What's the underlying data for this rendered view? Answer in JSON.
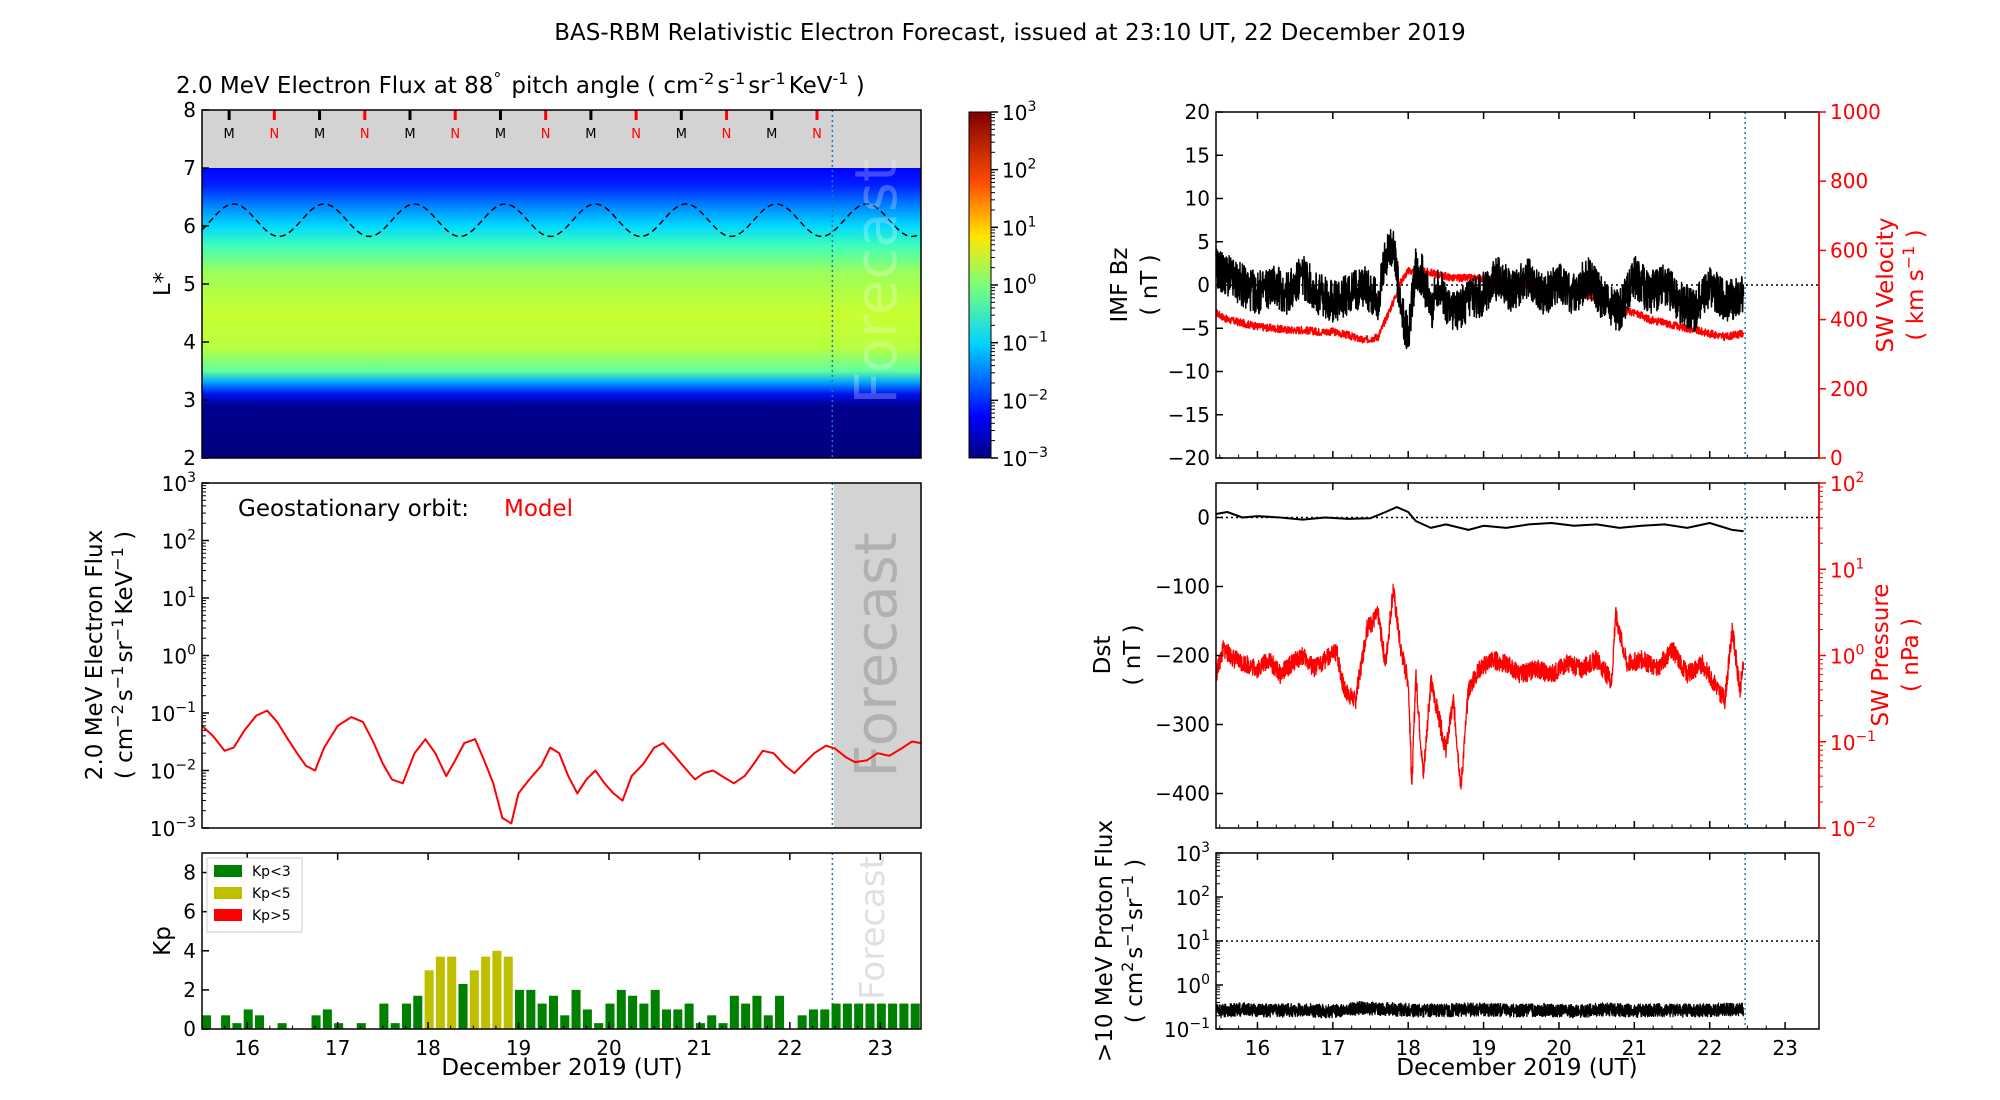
{
  "figure": {
    "title": "BAS-RBM Relativistic Electron Forecast, issued at 23:10 UT, 22 December 2019"
  },
  "colors": {
    "model_red": "#ff0000",
    "black": "#000000",
    "forecast_grey": "#d3d3d3",
    "forecast_line": "#1f77b4",
    "kp_low": "#008000",
    "kp_mid": "#bfbf00",
    "kp_high": "#ff0000"
  },
  "chart_data": [
    {
      "id": "lstar_flux",
      "type": "heatmap",
      "title": "2.0 MeV Electron Flux at 88",
      "title_deg": "°",
      "title_units_open": "pitch angle ( cm",
      "title_units_close": " )",
      "unit_parts": [
        "cm",
        "-2",
        "s",
        "-1",
        "sr",
        "-1",
        "KeV",
        "-1"
      ],
      "ylabel": "L*",
      "ylim": [
        2,
        8
      ],
      "yticks": [
        "2",
        "3",
        "4",
        "5",
        "6",
        "7",
        "8"
      ],
      "xlim": [
        15.5,
        23.45
      ],
      "forecast_start": 22.47,
      "forecast_label": "Forecast",
      "colorbar": {
        "scale": "log",
        "range": [
          0.001,
          1000
        ],
        "ticks": [
          {
            "base": "10",
            "exp": "-3"
          },
          {
            "base": "10",
            "exp": "-2"
          },
          {
            "base": "10",
            "exp": "-1"
          },
          {
            "base": "10",
            "exp": "0"
          },
          {
            "base": "10",
            "exp": "1"
          },
          {
            "base": "10",
            "exp": "2"
          },
          {
            "base": "10",
            "exp": "3"
          }
        ]
      },
      "mn_markers": [
        {
          "x": 15.8,
          "label": "M"
        },
        {
          "x": 16.3,
          "label": "N"
        },
        {
          "x": 16.8,
          "label": "M"
        },
        {
          "x": 17.3,
          "label": "N"
        },
        {
          "x": 17.8,
          "label": "M"
        },
        {
          "x": 18.3,
          "label": "N"
        },
        {
          "x": 18.8,
          "label": "M"
        },
        {
          "x": 19.3,
          "label": "N"
        },
        {
          "x": 19.8,
          "label": "M"
        },
        {
          "x": 20.3,
          "label": "N"
        },
        {
          "x": 20.8,
          "label": "M"
        },
        {
          "x": 21.3,
          "label": "N"
        },
        {
          "x": 21.8,
          "label": "M"
        },
        {
          "x": 22.3,
          "label": "N"
        }
      ],
      "geo_lstar_line": {
        "mean": 6.1,
        "amplitude": 0.28,
        "period_days": 1.0
      }
    },
    {
      "id": "geo_flux",
      "type": "line",
      "ylabel_lines": [
        "2.0 MeV Electron Flux",
        "( cm-2 s-1 sr-1 KeV-1 )"
      ],
      "annotation": "Geostationary orbit:",
      "annotation_model": "Model",
      "forecast_label": "Forecast",
      "yscale": "log",
      "ylim": [
        0.001,
        1000
      ],
      "xlim": [
        15.5,
        23.45
      ],
      "forecast_start": 22.47,
      "yticks": [
        {
          "base": "10",
          "exp": "-3"
        },
        {
          "base": "10",
          "exp": "-2"
        },
        {
          "base": "10",
          "exp": "-1"
        },
        {
          "base": "10",
          "exp": "0"
        },
        {
          "base": "10",
          "exp": "1"
        },
        {
          "base": "10",
          "exp": "2"
        },
        {
          "base": "10",
          "exp": "3"
        }
      ],
      "series": [
        {
          "color": "#ff0000",
          "x": [
            15.5,
            15.62,
            15.75,
            15.85,
            15.97,
            16.1,
            16.22,
            16.33,
            16.45,
            16.55,
            16.65,
            16.75,
            16.85,
            17.0,
            17.15,
            17.28,
            17.4,
            17.5,
            17.6,
            17.72,
            17.85,
            17.97,
            18.08,
            18.2,
            18.3,
            18.4,
            18.52,
            18.62,
            18.72,
            18.82,
            18.92,
            19.0,
            19.12,
            19.25,
            19.35,
            19.45,
            19.55,
            19.65,
            19.75,
            19.85,
            19.95,
            20.05,
            20.15,
            20.25,
            20.38,
            20.5,
            20.6,
            20.7,
            20.82,
            20.95,
            21.05,
            21.15,
            21.25,
            21.38,
            21.5,
            21.6,
            21.7,
            21.82,
            21.95,
            22.05,
            22.15,
            22.27,
            22.4,
            22.5,
            22.62,
            22.72,
            22.85,
            22.97,
            23.1,
            23.25,
            23.35,
            23.45
          ],
          "y": [
            0.06,
            0.04,
            0.022,
            0.025,
            0.05,
            0.09,
            0.11,
            0.07,
            0.035,
            0.02,
            0.012,
            0.01,
            0.025,
            0.06,
            0.085,
            0.07,
            0.03,
            0.013,
            0.007,
            0.006,
            0.02,
            0.035,
            0.02,
            0.008,
            0.015,
            0.03,
            0.035,
            0.015,
            0.006,
            0.0015,
            0.0012,
            0.004,
            0.007,
            0.012,
            0.025,
            0.02,
            0.008,
            0.004,
            0.007,
            0.01,
            0.006,
            0.004,
            0.003,
            0.008,
            0.013,
            0.025,
            0.03,
            0.02,
            0.012,
            0.007,
            0.009,
            0.01,
            0.008,
            0.006,
            0.008,
            0.013,
            0.022,
            0.02,
            0.012,
            0.009,
            0.013,
            0.02,
            0.027,
            0.024,
            0.017,
            0.014,
            0.015,
            0.02,
            0.018,
            0.025,
            0.032,
            0.03
          ]
        }
      ]
    },
    {
      "id": "kp",
      "type": "bar",
      "ylabel": "Kp",
      "ylim": [
        0,
        9
      ],
      "yticks": [
        "0",
        "2",
        "4",
        "6",
        "8"
      ],
      "xlim": [
        15.5,
        23.45
      ],
      "forecast_start": 22.47,
      "forecast_label": "Forecast",
      "xticks": [
        "16",
        "17",
        "18",
        "19",
        "20",
        "21",
        "22",
        "23"
      ],
      "xlabel": "December 2019 (UT)",
      "legend": [
        {
          "label": "Kp<3",
          "color": "#008000"
        },
        {
          "label": "Kp<5",
          "color": "#bfbf00"
        },
        {
          "label": "Kp>5",
          "color": "#ff0000"
        }
      ],
      "bar_width": 0.1,
      "bar_x": [
        15.5,
        15.625,
        15.75,
        15.875,
        16.0,
        16.125,
        16.25,
        16.375,
        16.5,
        16.625,
        16.75,
        16.875,
        17.0,
        17.125,
        17.25,
        17.375,
        17.5,
        17.625,
        17.75,
        17.875,
        18.0,
        18.125,
        18.25,
        18.375,
        18.5,
        18.625,
        18.75,
        18.875,
        19.0,
        19.125,
        19.25,
        19.375,
        19.5,
        19.625,
        19.75,
        19.875,
        20.0,
        20.125,
        20.25,
        20.375,
        20.5,
        20.625,
        20.75,
        20.875,
        21.0,
        21.125,
        21.25,
        21.375,
        21.5,
        21.625,
        21.75,
        21.875,
        22.0,
        22.125,
        22.25,
        22.375,
        22.5,
        22.625,
        22.75,
        22.875,
        23.0,
        23.125,
        23.25,
        23.375
      ],
      "values": [
        0.7,
        0.0,
        0.7,
        0.3,
        1.0,
        0.7,
        0.0,
        0.3,
        0.0,
        0.0,
        0.7,
        1.0,
        0.3,
        0.0,
        0.3,
        0.0,
        1.3,
        0.3,
        1.3,
        1.7,
        3.0,
        3.7,
        3.7,
        2.3,
        3.0,
        3.7,
        4.0,
        3.7,
        2.0,
        2.0,
        1.3,
        1.7,
        0.7,
        2.0,
        1.0,
        0.3,
        1.3,
        2.0,
        1.7,
        1.3,
        2.0,
        1.0,
        1.0,
        1.3,
        0.3,
        0.7,
        0.3,
        1.7,
        1.3,
        1.7,
        0.7,
        1.7,
        0.0,
        0.7,
        1.0,
        1.0,
        1.3,
        1.3,
        1.3,
        1.3,
        1.3,
        1.3,
        1.3,
        1.3
      ]
    },
    {
      "id": "imf_sw",
      "type": "line",
      "ylabel": "IMF Bz",
      "ylabel_unit": "( nT )",
      "ylim": [
        -20,
        20
      ],
      "yticks": [
        "−20",
        "−15",
        "−10",
        "−5",
        "0",
        "5",
        "10",
        "15",
        "20"
      ],
      "y2label": "SW Velocity",
      "y2label_unit_open": "( km s",
      "y2label_unit_exp": "-1",
      "y2label_unit_close": " )",
      "y2lim": [
        0,
        1000
      ],
      "y2ticks": [
        "0",
        "200",
        "400",
        "600",
        "800",
        "1000"
      ],
      "xlim": [
        15.45,
        23.45
      ],
      "forecast_start": 22.47,
      "series": [
        {
          "name": "IMF Bz",
          "color": "#000000",
          "x": [
            15.45,
            15.6,
            15.8,
            16.0,
            16.2,
            16.4,
            16.6,
            16.8,
            17.0,
            17.2,
            17.4,
            17.6,
            17.7,
            17.8,
            17.9,
            18.0,
            18.1,
            18.2,
            18.3,
            18.4,
            18.5,
            18.6,
            18.8,
            19.0,
            19.2,
            19.4,
            19.6,
            19.8,
            20.0,
            20.2,
            20.4,
            20.6,
            20.8,
            21.0,
            21.2,
            21.4,
            21.6,
            21.8,
            22.0,
            22.2,
            22.45
          ],
          "y": [
            2,
            1,
            0,
            -1,
            0,
            -1,
            1,
            -1,
            -2,
            -1,
            0,
            -2,
            3,
            5,
            -3,
            -6,
            2,
            1,
            -3,
            0,
            -2,
            -3,
            -2,
            -1,
            1,
            -1,
            1,
            -1,
            0,
            -1,
            1,
            -2,
            -3,
            1,
            -1,
            0,
            -2,
            -3,
            0,
            -2,
            -1
          ]
        },
        {
          "name": "SW Velocity",
          "color": "#ff0000",
          "axis": "right",
          "x": [
            15.45,
            15.6,
            15.8,
            16.0,
            16.2,
            16.4,
            16.6,
            16.8,
            17.0,
            17.2,
            17.4,
            17.6,
            17.7,
            17.8,
            17.9,
            18.0,
            18.2,
            18.4,
            18.6,
            18.8,
            19.0,
            19.2,
            19.4,
            19.6,
            19.8,
            20.0,
            20.2,
            20.4,
            20.6,
            20.8,
            21.0,
            21.2,
            21.4,
            21.6,
            21.8,
            22.0,
            22.2,
            22.45
          ],
          "y": [
            420,
            400,
            390,
            380,
            375,
            370,
            370,
            365,
            365,
            355,
            340,
            350,
            400,
            450,
            510,
            540,
            540,
            530,
            520,
            520,
            520,
            515,
            510,
            500,
            500,
            490,
            480,
            470,
            450,
            430,
            420,
            400,
            390,
            380,
            370,
            360,
            350,
            360
          ]
        }
      ]
    },
    {
      "id": "dst_pressure",
      "type": "line",
      "ylabel": "Dst",
      "ylabel_unit": "( nT )",
      "ylim": [
        -450,
        50
      ],
      "yticks": [
        "−400",
        "−300",
        "−200",
        "−100",
        "0"
      ],
      "y2label": "SW Pressure",
      "y2label_unit": "( nPa )",
      "y2scale": "log",
      "y2lim": [
        0.01,
        100
      ],
      "y2ticks": [
        {
          "base": "10",
          "exp": "-2"
        },
        {
          "base": "10",
          "exp": "-1"
        },
        {
          "base": "10",
          "exp": "0"
        },
        {
          "base": "10",
          "exp": "1"
        },
        {
          "base": "10",
          "exp": "2"
        }
      ],
      "xlim": [
        15.45,
        23.45
      ],
      "forecast_start": 22.47,
      "series": [
        {
          "name": "Dst",
          "color": "#000000",
          "x": [
            15.45,
            15.6,
            15.8,
            16.0,
            16.3,
            16.6,
            16.9,
            17.2,
            17.5,
            17.7,
            17.85,
            18.0,
            18.1,
            18.3,
            18.5,
            18.8,
            19.0,
            19.3,
            19.6,
            19.9,
            20.2,
            20.5,
            20.8,
            21.1,
            21.4,
            21.7,
            22.0,
            22.3,
            22.45
          ],
          "y": [
            5,
            8,
            0,
            2,
            0,
            -3,
            0,
            -2,
            -1,
            8,
            15,
            8,
            -5,
            -15,
            -10,
            -18,
            -12,
            -15,
            -10,
            -8,
            -12,
            -10,
            -15,
            -12,
            -10,
            -15,
            -8,
            -18,
            -20
          ]
        },
        {
          "name": "SW Pressure",
          "color": "#ff0000",
          "axis": "right",
          "x": [
            15.45,
            15.55,
            15.7,
            15.85,
            16.0,
            16.15,
            16.3,
            16.45,
            16.6,
            16.75,
            16.9,
            17.05,
            17.15,
            17.3,
            17.45,
            17.6,
            17.7,
            17.8,
            17.9,
            18.0,
            18.05,
            18.1,
            18.2,
            18.3,
            18.4,
            18.5,
            18.6,
            18.7,
            18.8,
            18.95,
            19.1,
            19.3,
            19.5,
            19.7,
            19.9,
            20.1,
            20.3,
            20.5,
            20.7,
            20.75,
            20.9,
            21.1,
            21.3,
            21.5,
            21.7,
            21.9,
            22.05,
            22.2,
            22.3,
            22.4,
            22.45
          ],
          "y": [
            0.6,
            1.2,
            0.9,
            0.8,
            0.7,
            0.9,
            0.6,
            0.8,
            1.0,
            0.7,
            0.9,
            1.1,
            0.4,
            0.3,
            2.0,
            3.0,
            0.8,
            6.0,
            1.2,
            0.5,
            0.03,
            0.6,
            0.04,
            0.5,
            0.2,
            0.08,
            0.3,
            0.03,
            0.4,
            0.7,
            0.9,
            0.8,
            0.6,
            0.7,
            0.6,
            0.8,
            0.7,
            0.9,
            0.5,
            3.0,
            0.8,
            0.9,
            0.7,
            1.2,
            0.6,
            0.8,
            0.5,
            0.3,
            2.0,
            0.4,
            0.8
          ]
        }
      ]
    },
    {
      "id": "proton_flux",
      "type": "line",
      "ylabel_lines": [
        ">10 MeV Proton Flux",
        "( cm2 s-1 sr-1 )"
      ],
      "yscale": "log",
      "ylim": [
        0.1,
        1000
      ],
      "yticks": [
        {
          "base": "10",
          "exp": "-1"
        },
        {
          "base": "10",
          "exp": "0"
        },
        {
          "base": "10",
          "exp": "1"
        },
        {
          "base": "10",
          "exp": "2"
        },
        {
          "base": "10",
          "exp": "3"
        }
      ],
      "threshold": 10,
      "xlim": [
        15.45,
        23.45
      ],
      "forecast_start": 22.47,
      "xticks": [
        "16",
        "17",
        "18",
        "19",
        "20",
        "21",
        "22",
        "23"
      ],
      "xlabel": "December 2019 (UT)",
      "series": [
        {
          "color": "#000000",
          "x": [
            15.45,
            15.8,
            16.2,
            16.6,
            17.0,
            17.4,
            17.8,
            18.2,
            18.6,
            19.0,
            19.4,
            19.8,
            20.2,
            20.6,
            21.0,
            21.4,
            21.8,
            22.2,
            22.45
          ],
          "y": [
            0.25,
            0.28,
            0.26,
            0.27,
            0.25,
            0.3,
            0.28,
            0.26,
            0.27,
            0.28,
            0.26,
            0.27,
            0.25,
            0.28,
            0.26,
            0.27,
            0.26,
            0.28,
            0.27
          ]
        }
      ]
    }
  ]
}
